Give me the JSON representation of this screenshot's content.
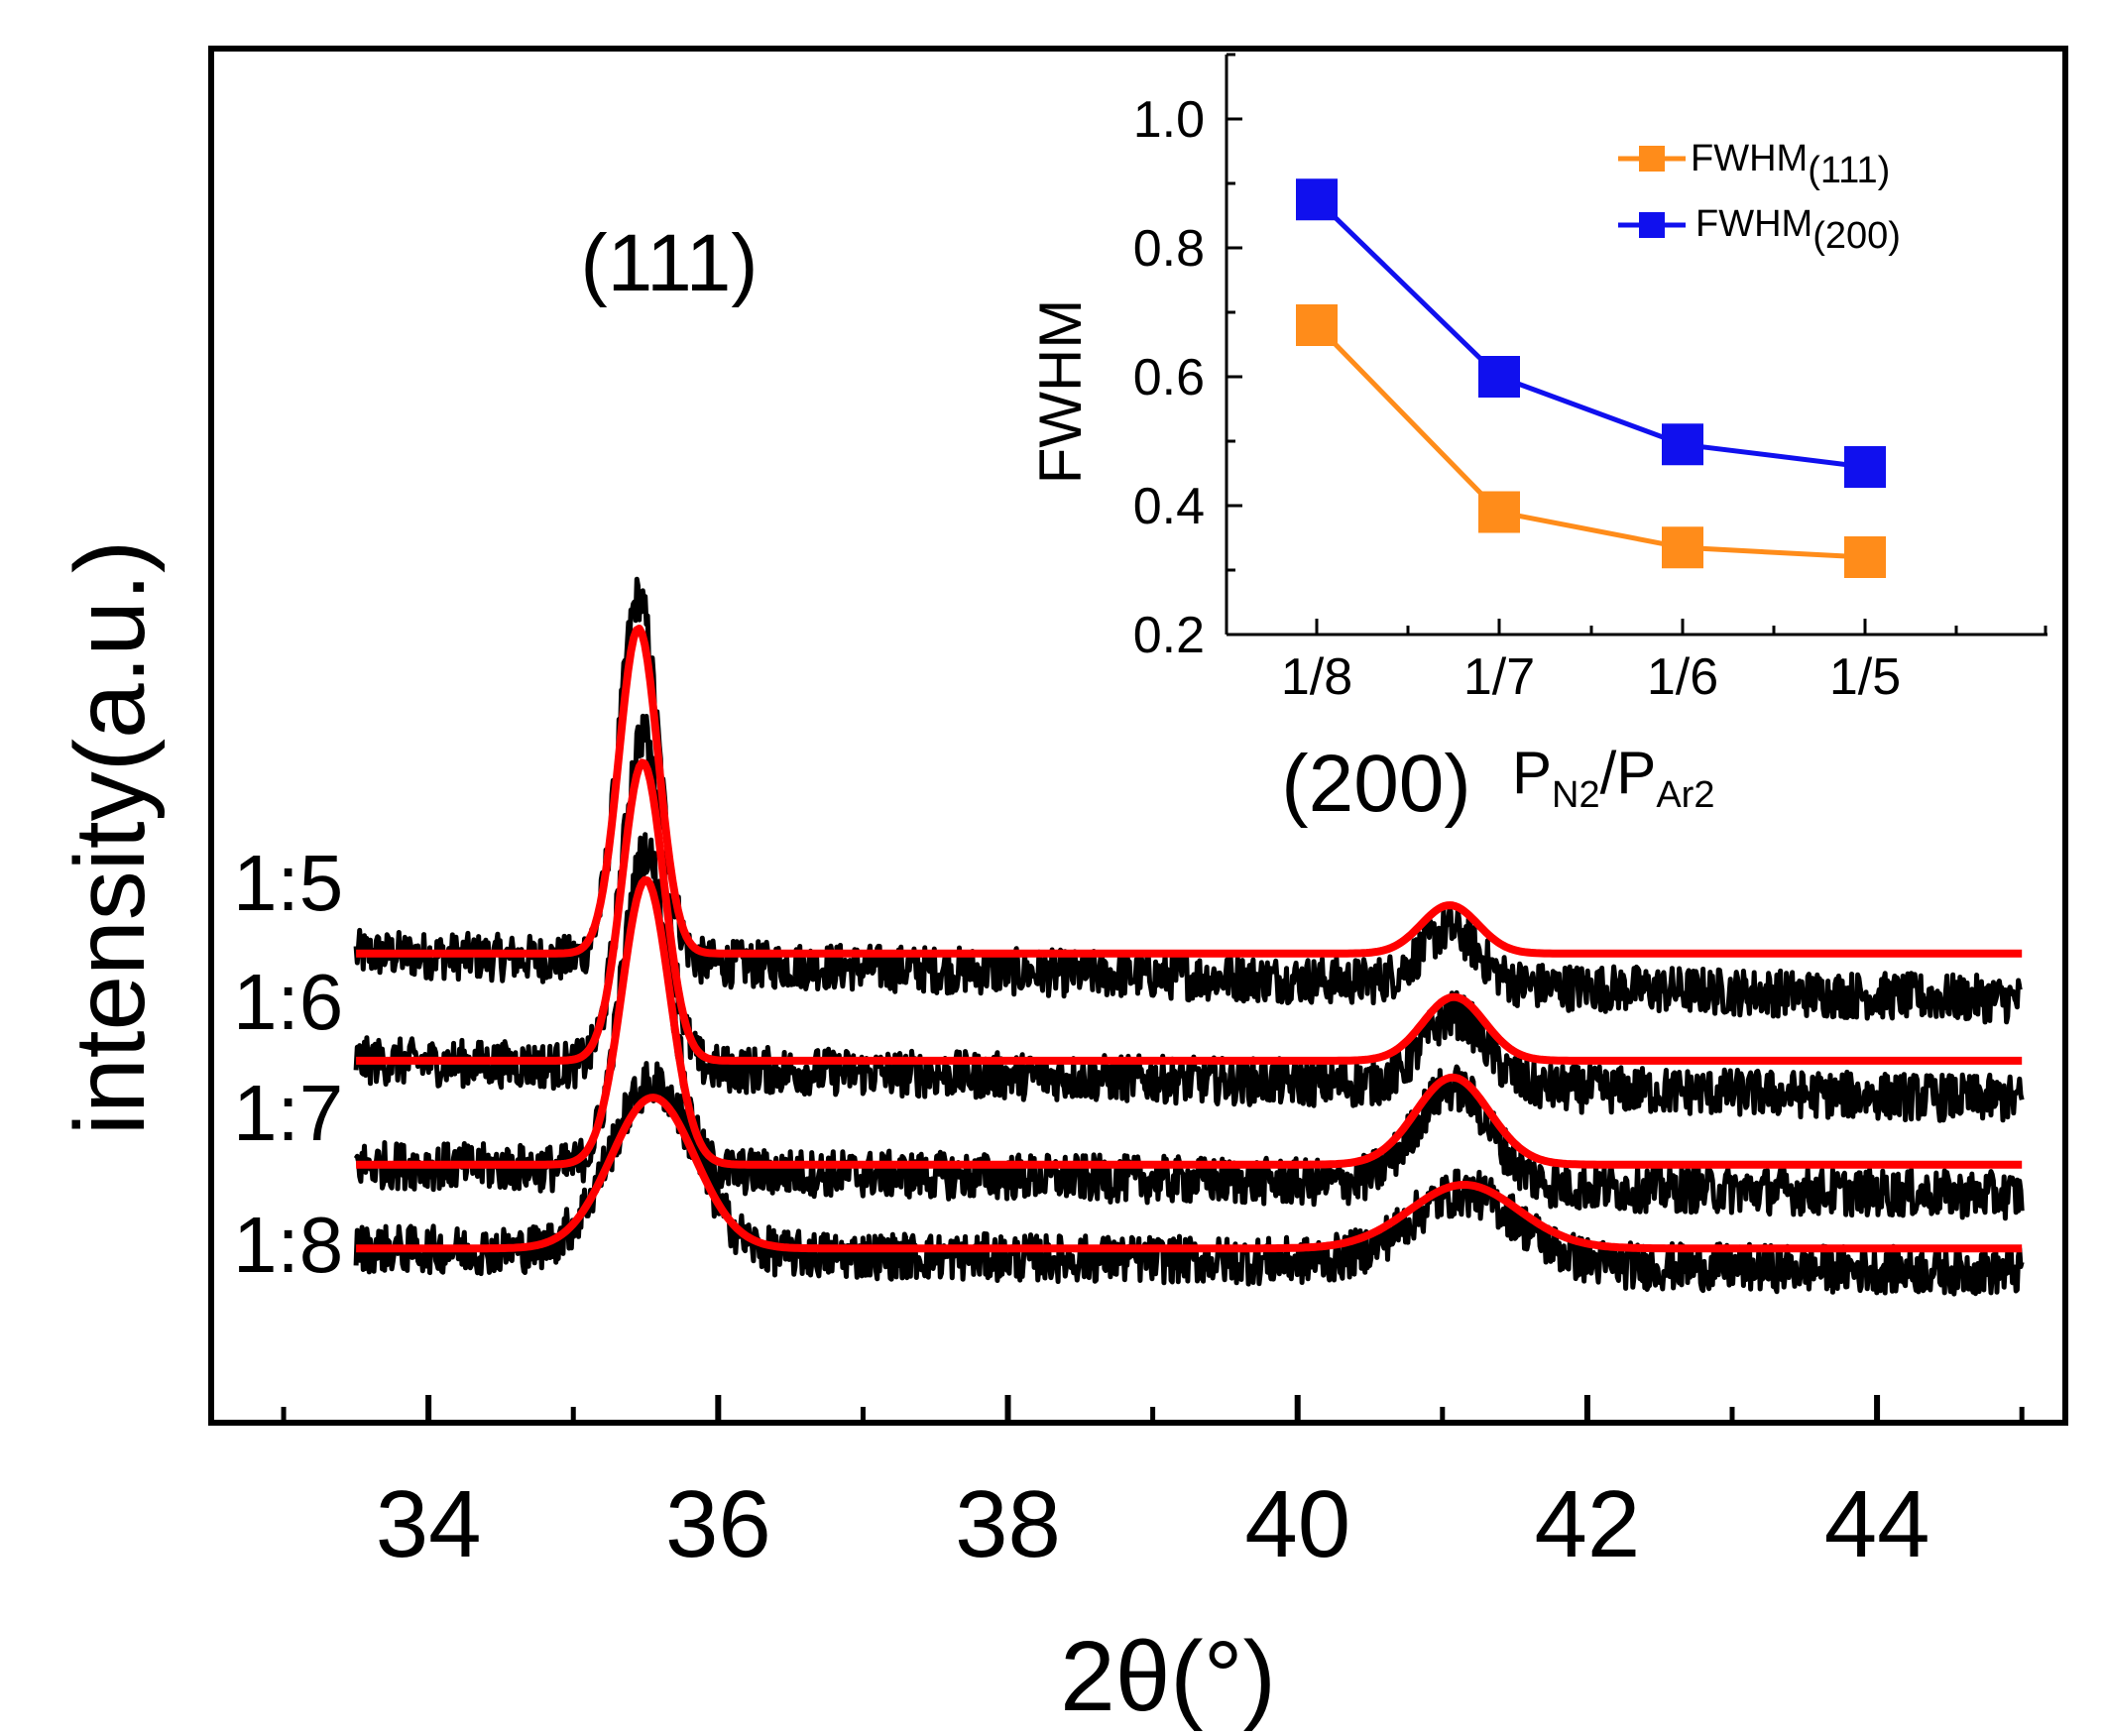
{
  "chart_data": [
    {
      "type": "line",
      "subtype": "xrd-pattern-with-fits",
      "xlabel": "2θ(°)",
      "ylabel": "intensity(a.u.)",
      "xlim": [
        32.5,
        45.3
      ],
      "xticks": [
        34,
        36,
        38,
        40,
        42,
        44
      ],
      "x_minor_ticks": [
        33,
        35,
        37,
        39,
        41,
        43,
        45
      ],
      "yticks_shown": false,
      "grid": false,
      "peak_labels": [
        {
          "text": "(111)",
          "x": 35.45
        },
        {
          "text": "(200)",
          "x": 41.05
        }
      ],
      "x_range_data": [
        33.5,
        45.0
      ],
      "colors": {
        "raw": "#000000",
        "fit": "#ff0000",
        "frame": "#000000"
      },
      "series": [
        {
          "name": "1:5",
          "baseline": 5.5,
          "raw_noise": 0.35,
          "raw_slope": -0.06,
          "peaks": [
            {
              "center": 35.45,
              "height": 4.85,
              "fwhm": 0.32
            },
            {
              "center": 41.05,
              "height": 0.72,
              "fwhm": 0.46
            }
          ]
        },
        {
          "name": "1:6",
          "baseline": 3.9,
          "raw_noise": 0.35,
          "raw_slope": -0.05,
          "peaks": [
            {
              "center": 35.48,
              "height": 4.45,
              "fwhm": 0.34
            },
            {
              "center": 41.08,
              "height": 0.95,
              "fwhm": 0.5
            }
          ]
        },
        {
          "name": "1:7",
          "baseline": 2.35,
          "raw_noise": 0.35,
          "raw_slope": -0.04,
          "peaks": [
            {
              "center": 35.5,
              "height": 4.25,
              "fwhm": 0.39
            },
            {
              "center": 41.07,
              "height": 1.3,
              "fwhm": 0.6
            }
          ]
        },
        {
          "name": "1:8",
          "baseline": 1.1,
          "raw_noise": 0.35,
          "raw_slope": -0.03,
          "peaks": [
            {
              "center": 35.55,
              "height": 2.25,
              "fwhm": 0.68
            },
            {
              "center": 41.15,
              "height": 0.95,
              "fwhm": 0.88
            }
          ]
        }
      ],
      "ylim": [
        -1.5,
        19.0
      ]
    },
    {
      "type": "line",
      "role": "inset",
      "xlabel": "P_N2/P_Ar2",
      "xlabel_parts": {
        "main": "P",
        "sub1": "N2",
        "slash": "/P",
        "sub2": "Ar2"
      },
      "ylabel": "FWHM",
      "categories": [
        "1/8",
        "1/7",
        "1/6",
        "1/5"
      ],
      "ylim": [
        0.2,
        1.1
      ],
      "yticks": [
        "0.2",
        "0.4",
        "0.6",
        "0.8",
        "1.0"
      ],
      "legend_position": "top-right",
      "series": [
        {
          "name": "FWHM",
          "subscript": "(111)",
          "color": "#ff8c1a",
          "values": [
            0.68,
            0.39,
            0.335,
            0.32
          ]
        },
        {
          "name": "FWHM",
          "subscript": "(200)",
          "color": "#1010ee",
          "values": [
            0.875,
            0.6,
            0.495,
            0.46
          ]
        }
      ]
    }
  ]
}
